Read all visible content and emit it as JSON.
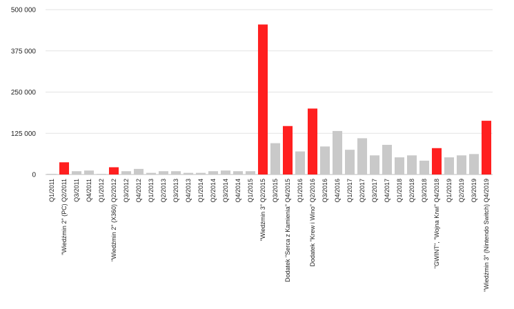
{
  "chart_data": {
    "type": "bar",
    "title": "",
    "xlabel": "",
    "ylabel": "",
    "ylim": [
      0,
      500000
    ],
    "yticks": [
      0,
      125000,
      250000,
      375000,
      500000
    ],
    "ytick_labels": [
      "0",
      "125 000",
      "250 000",
      "375 000",
      "500 000"
    ],
    "grid": true,
    "highlight_color": "#ff1f1f",
    "base_color": "#c9c9c9",
    "categories": [
      "Q1/2011",
      "\"Wiedźmin 2\" (PC) Q2/2011",
      "Q3/2011",
      "Q4/2011",
      "Q1/2012",
      "\"Wiedźmin 2\" (X360) Q2/2012",
      "Q3/2012",
      "Q4/2012",
      "Q1/2013",
      "Q2/2013",
      "Q3/2013",
      "Q4/2013",
      "Q1/2014",
      "Q2/2014",
      "Q3/2014",
      "Q4/2014",
      "Q1/2015",
      "\"Wiedźmin 3\" Q2/2015",
      "Q3/2015",
      "Dodatek \"Serca z Kamienia\" Q4/2015",
      "Q1/2016",
      "Dodatek \"Krew i Wino\" Q2/2016",
      "Q3/2016",
      "Q4/2016",
      "Q1/2017",
      "Q2/2017",
      "Q3/2017",
      "Q4/2017",
      "Q1/2018",
      "Q2/2018",
      "Q3/2018",
      "\"GWINT\", \"Wojna Krwi\" Q4/2018",
      "Q1/2019",
      "Q2/2019",
      "Q3/2019",
      "\"Wiedźmin 3\" (Nintendo Switch) Q4/2019"
    ],
    "values": [
      2000,
      37000,
      10000,
      12000,
      2000,
      22000,
      10000,
      17000,
      5000,
      10000,
      10000,
      5000,
      5000,
      10000,
      12000,
      10000,
      10000,
      455000,
      95000,
      147000,
      70000,
      200000,
      85000,
      132000,
      75000,
      110000,
      58000,
      90000,
      52000,
      58000,
      42000,
      80000,
      52000,
      58000,
      62000,
      163000
    ],
    "highlight": [
      false,
      true,
      false,
      false,
      false,
      true,
      false,
      false,
      false,
      false,
      false,
      false,
      false,
      false,
      false,
      false,
      false,
      true,
      false,
      true,
      false,
      true,
      false,
      false,
      false,
      false,
      false,
      false,
      false,
      false,
      false,
      true,
      false,
      false,
      false,
      true
    ]
  }
}
